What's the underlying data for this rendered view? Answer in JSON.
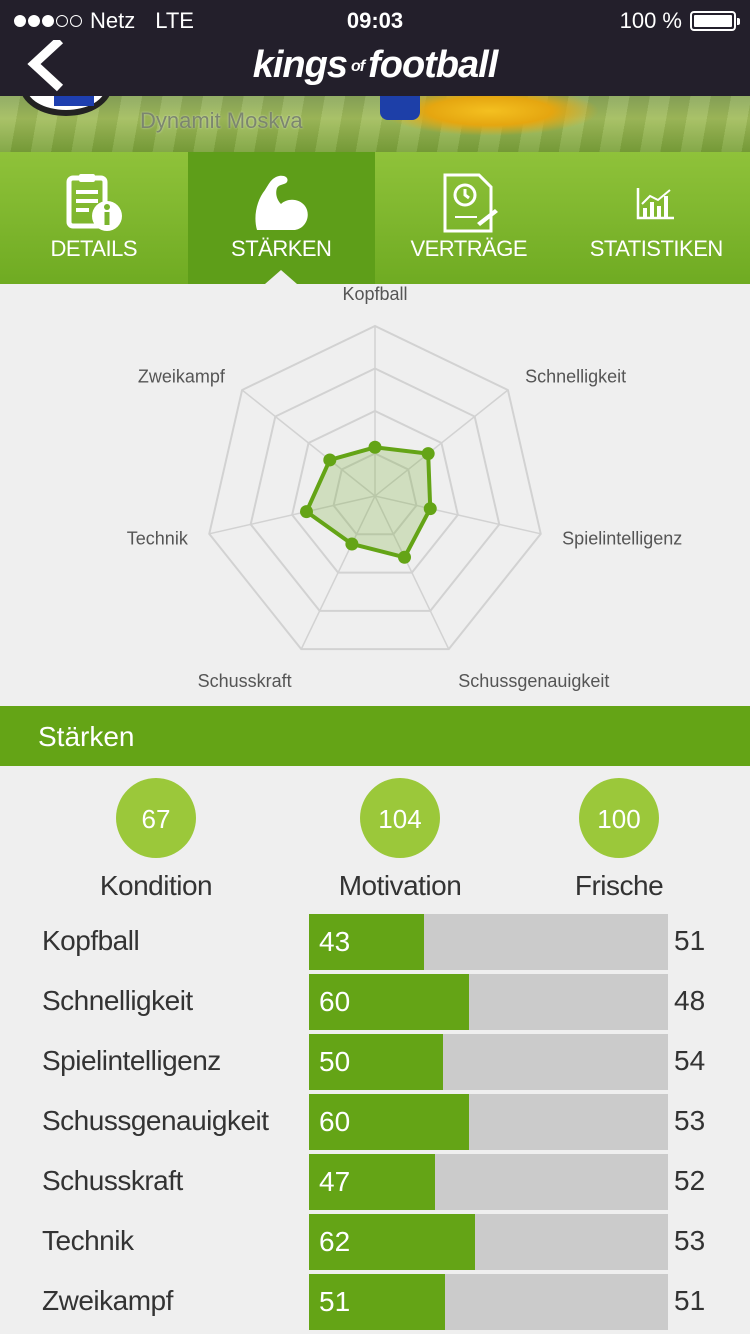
{
  "status": {
    "carrier": "Netz",
    "network": "LTE",
    "time": "09:03",
    "battery": "100 %"
  },
  "nav": {
    "logo_main": "kings",
    "logo_of": "of",
    "logo_end": "football"
  },
  "banner": {
    "team": "Dynamit Moskva"
  },
  "tabs": [
    {
      "label": "DETAILS",
      "icon": "document-info-icon"
    },
    {
      "label": "STÄRKEN",
      "icon": "flexed-arm-icon"
    },
    {
      "label": "VERTRÄGE",
      "icon": "contract-icon"
    },
    {
      "label": "STATISTIKEN",
      "icon": "chart-icon"
    }
  ],
  "chart_data": {
    "type": "radar",
    "axes": [
      "Kopfball",
      "Schnelligkeit",
      "Spielintelligenz",
      "Schussgenauigkeit",
      "Schusskraft",
      "Technik",
      "Zweikampf"
    ],
    "values": [
      43,
      60,
      50,
      60,
      47,
      62,
      51
    ],
    "range": [
      0,
      150
    ],
    "rings": 4,
    "color": "#64a416"
  },
  "section": {
    "title": "Stärken"
  },
  "stats": [
    {
      "value": "67",
      "label": "Kondition"
    },
    {
      "value": "104",
      "label": "Motivation"
    },
    {
      "value": "100",
      "label": "Frische"
    }
  ],
  "bars": [
    {
      "name": "Kopfball",
      "value": 43,
      "other": 51,
      "fill": 0.32
    },
    {
      "name": "Schnelligkeit",
      "value": 60,
      "other": 48,
      "fill": 0.445
    },
    {
      "name": "Spielintelligenz",
      "value": 50,
      "other": 54,
      "fill": 0.373
    },
    {
      "name": "Schussgenauigkeit",
      "value": 60,
      "other": 53,
      "fill": 0.445
    },
    {
      "name": "Schusskraft",
      "value": 47,
      "other": 52,
      "fill": 0.35
    },
    {
      "name": "Technik",
      "value": 62,
      "other": 53,
      "fill": 0.462
    },
    {
      "name": "Zweikampf",
      "value": 51,
      "other": 51,
      "fill": 0.378
    }
  ]
}
